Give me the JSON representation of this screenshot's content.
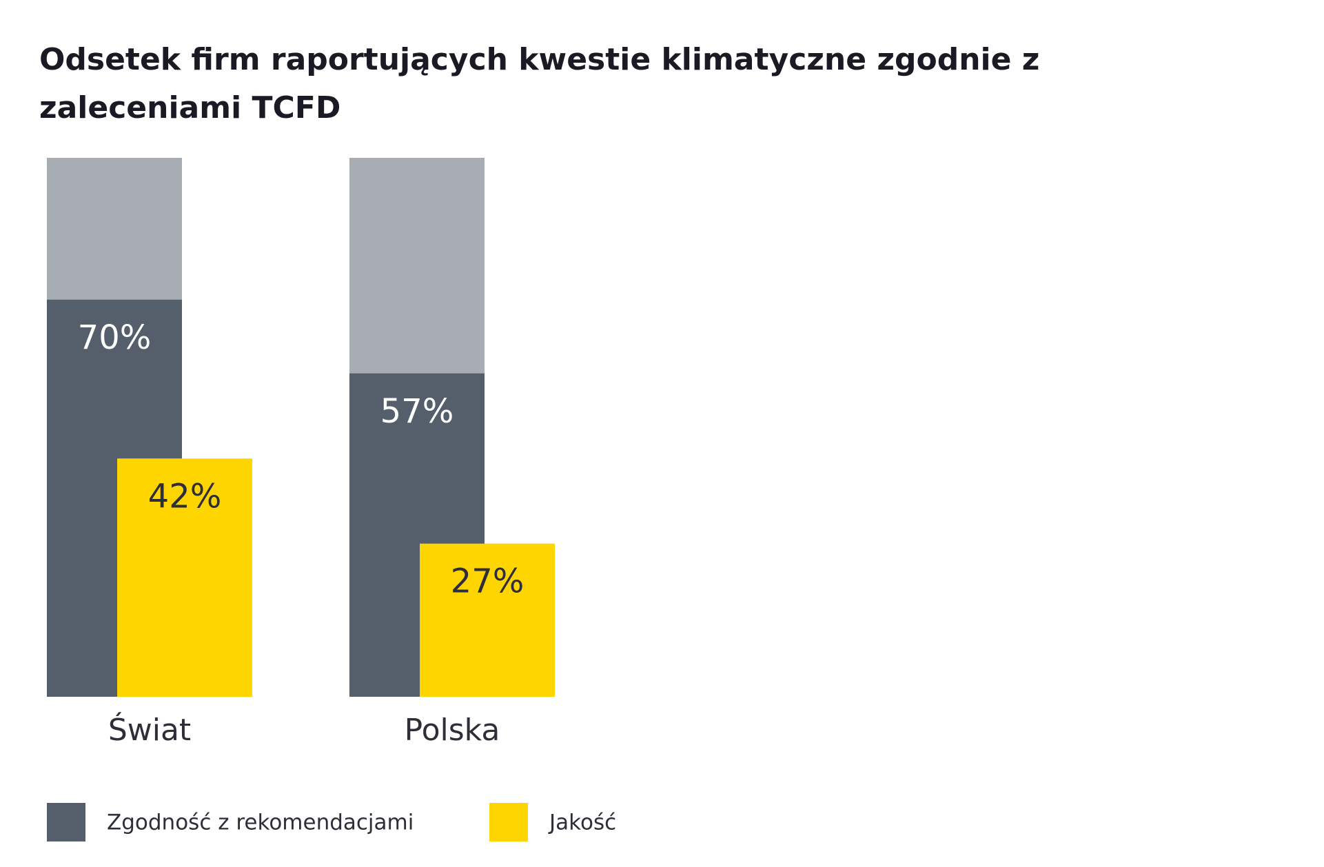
{
  "chart_data": {
    "type": "bar",
    "title": "Odsetek firm raportujących kwestie klimatyczne zgodnie z zaleceniami TCFD",
    "categories": [
      "Świat",
      "Polska"
    ],
    "series": [
      {
        "name": "Zgodność z rekomendacjami",
        "color": "#545f6b",
        "values": [
          70,
          57
        ],
        "value_labels": [
          "70%",
          "57%"
        ]
      },
      {
        "name": "Jakość",
        "color": "#ffd500",
        "values": [
          42,
          27
        ],
        "value_labels": [
          "42%",
          "27%"
        ]
      }
    ],
    "ylim": [
      0,
      95
    ],
    "track_color": "#a7adb3"
  }
}
